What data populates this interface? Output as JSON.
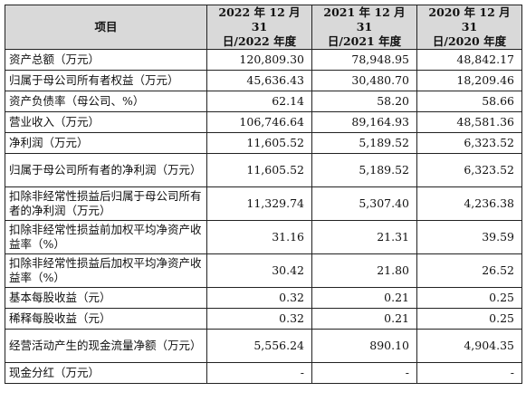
{
  "table": {
    "header": {
      "item": "项目",
      "col_2022_line1": "2022 年 12 月 31",
      "col_2022_line2": "日/2022 年度",
      "col_2021_line1": "2021 年 12 月 31",
      "col_2021_line2": "日/2021 年度",
      "col_2020_line1": "2020 年 12 月 31",
      "col_2020_line2": "日/2020 年度"
    },
    "rows": [
      {
        "label": "资产总额（万元）",
        "v2022": "120,809.30",
        "v2021": "78,948.95",
        "v2020": "48,842.17"
      },
      {
        "label": "归属于母公司所有者权益（万元）",
        "v2022": "45,636.43",
        "v2021": "30,480.70",
        "v2020": "18,209.46"
      },
      {
        "label": "资产负债率（母公司、%）",
        "v2022": "62.14",
        "v2021": "58.20",
        "v2020": "58.66"
      },
      {
        "label": "营业收入（万元）",
        "v2022": "106,746.64",
        "v2021": "89,164.93",
        "v2020": "48,581.36"
      },
      {
        "label": "净利润（万元）",
        "v2022": "11,605.52",
        "v2021": "5,189.52",
        "v2020": "6,323.52"
      },
      {
        "label": "归属于母公司所有者的净利润（万元）",
        "v2022": "11,605.52",
        "v2021": "5,189.52",
        "v2020": "6,323.52"
      },
      {
        "label": "扣除非经常性损益后归属于母公司所有者的净利润（万元）",
        "v2022": "11,329.74",
        "v2021": "5,307.40",
        "v2020": "4,236.38"
      },
      {
        "label": "扣除非经常性损益前加权平均净资产收益率（%）",
        "v2022": "31.16",
        "v2021": "21.31",
        "v2020": "39.59"
      },
      {
        "label": "扣除非经常性损益后加权平均净资产收益率（%）",
        "v2022": "30.42",
        "v2021": "21.80",
        "v2020": "26.52"
      },
      {
        "label": "基本每股收益（元）",
        "v2022": "0.32",
        "v2021": "0.21",
        "v2020": "0.25"
      },
      {
        "label": "稀释每股收益（元）",
        "v2022": "0.32",
        "v2021": "0.21",
        "v2020": "0.25"
      },
      {
        "label": "经营活动产生的现金流量净额（万元）",
        "v2022": "5,556.24",
        "v2021": "890.10",
        "v2020": "4,904.35"
      },
      {
        "label": "现金分红（万元）",
        "v2022": "-",
        "v2021": "-",
        "v2020": "-"
      }
    ]
  }
}
